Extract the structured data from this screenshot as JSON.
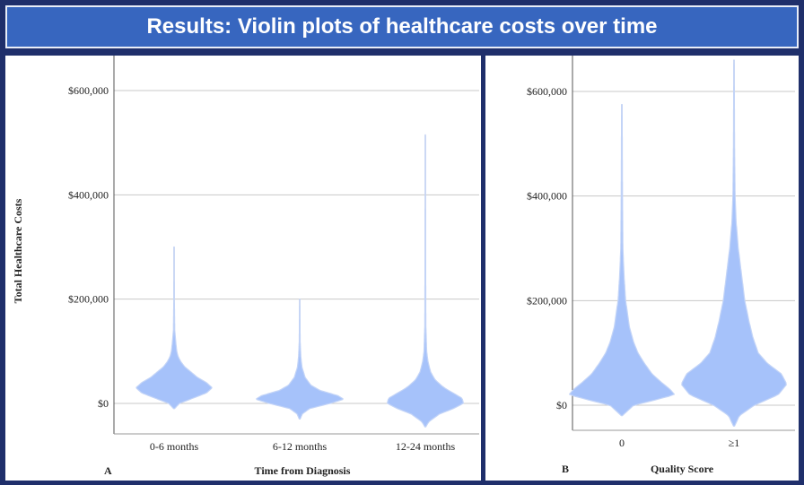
{
  "title": "Results: Violin plots of healthcare costs over time",
  "chart_data": [
    {
      "type": "violin",
      "panel_label": "A",
      "xlabel": "Time from Diagnosis",
      "ylabel": "Total Healthcare Costs",
      "ylim": [
        -60000,
        660000
      ],
      "yticks": [
        0,
        200000,
        400000,
        600000
      ],
      "ytick_labels": [
        "$0",
        "$200,000",
        "$400,000",
        "$600,000"
      ],
      "grid": true,
      "categories": [
        "0-6 months",
        "6-12 months",
        "12-24 months"
      ],
      "violin_color": "#a6c2fa",
      "series": [
        {
          "category": "0-6 months",
          "min": -10000,
          "max": 300000,
          "profile": [
            [
              -10000,
              0.01
            ],
            [
              0,
              0.12
            ],
            [
              10000,
              0.42
            ],
            [
              20000,
              0.72
            ],
            [
              30000,
              0.85
            ],
            [
              40000,
              0.72
            ],
            [
              50000,
              0.52
            ],
            [
              60000,
              0.38
            ],
            [
              70000,
              0.24
            ],
            [
              80000,
              0.15
            ],
            [
              90000,
              0.09
            ],
            [
              100000,
              0.06
            ],
            [
              120000,
              0.035
            ],
            [
              140000,
              0.015
            ],
            [
              200000,
              0.006
            ],
            [
              300000,
              0.003
            ]
          ]
        },
        {
          "category": "6-12 months",
          "min": -30000,
          "max": 200000,
          "profile": [
            [
              -30000,
              0.01
            ],
            [
              -20000,
              0.06
            ],
            [
              -10000,
              0.22
            ],
            [
              0,
              0.68
            ],
            [
              8000,
              0.98
            ],
            [
              15000,
              0.85
            ],
            [
              25000,
              0.45
            ],
            [
              35000,
              0.25
            ],
            [
              50000,
              0.12
            ],
            [
              70000,
              0.05
            ],
            [
              90000,
              0.025
            ],
            [
              120000,
              0.01
            ],
            [
              200000,
              0.004
            ]
          ]
        },
        {
          "category": "12-24 months",
          "min": -45000,
          "max": 515000,
          "profile": [
            [
              -45000,
              0.01
            ],
            [
              -35000,
              0.08
            ],
            [
              -20000,
              0.32
            ],
            [
              -10000,
              0.62
            ],
            [
              0,
              0.85
            ],
            [
              10000,
              0.82
            ],
            [
              20000,
              0.62
            ],
            [
              30000,
              0.42
            ],
            [
              45000,
              0.22
            ],
            [
              60000,
              0.12
            ],
            [
              80000,
              0.06
            ],
            [
              100000,
              0.03
            ],
            [
              150000,
              0.012
            ],
            [
              300000,
              0.006
            ],
            [
              515000,
              0.003
            ]
          ]
        }
      ]
    },
    {
      "type": "violin",
      "panel_label": "B",
      "xlabel": "Quality Score",
      "ylabel": "",
      "ylim": [
        -30000,
        660000
      ],
      "yticks": [
        0,
        200000,
        400000,
        600000
      ],
      "ytick_labels": [
        "$0",
        "$200,000",
        "$400,000",
        "$600,000"
      ],
      "grid": true,
      "categories": [
        "0",
        "≥1"
      ],
      "violin_color": "#a6c2fa",
      "series": [
        {
          "category": "0",
          "min": -20000,
          "max": 575000,
          "profile": [
            [
              -20000,
              0.01
            ],
            [
              0,
              0.22
            ],
            [
              10000,
              0.62
            ],
            [
              20000,
              0.98
            ],
            [
              30000,
              0.9
            ],
            [
              45000,
              0.72
            ],
            [
              60000,
              0.56
            ],
            [
              80000,
              0.42
            ],
            [
              100000,
              0.3
            ],
            [
              120000,
              0.22
            ],
            [
              150000,
              0.14
            ],
            [
              180000,
              0.1
            ],
            [
              200000,
              0.07
            ],
            [
              250000,
              0.04
            ],
            [
              300000,
              0.02
            ],
            [
              400000,
              0.012
            ],
            [
              575000,
              0.005
            ]
          ]
        },
        {
          "category": "≥1",
          "min": -40000,
          "max": 660000,
          "profile": [
            [
              -40000,
              0.01
            ],
            [
              -20000,
              0.1
            ],
            [
              0,
              0.38
            ],
            [
              20000,
              0.82
            ],
            [
              40000,
              0.98
            ],
            [
              60000,
              0.88
            ],
            [
              80000,
              0.62
            ],
            [
              100000,
              0.45
            ],
            [
              130000,
              0.35
            ],
            [
              160000,
              0.28
            ],
            [
              200000,
              0.2
            ],
            [
              250000,
              0.14
            ],
            [
              300000,
              0.08
            ],
            [
              350000,
              0.04
            ],
            [
              400000,
              0.02
            ],
            [
              500000,
              0.01
            ],
            [
              660000,
              0.004
            ]
          ]
        }
      ]
    }
  ]
}
